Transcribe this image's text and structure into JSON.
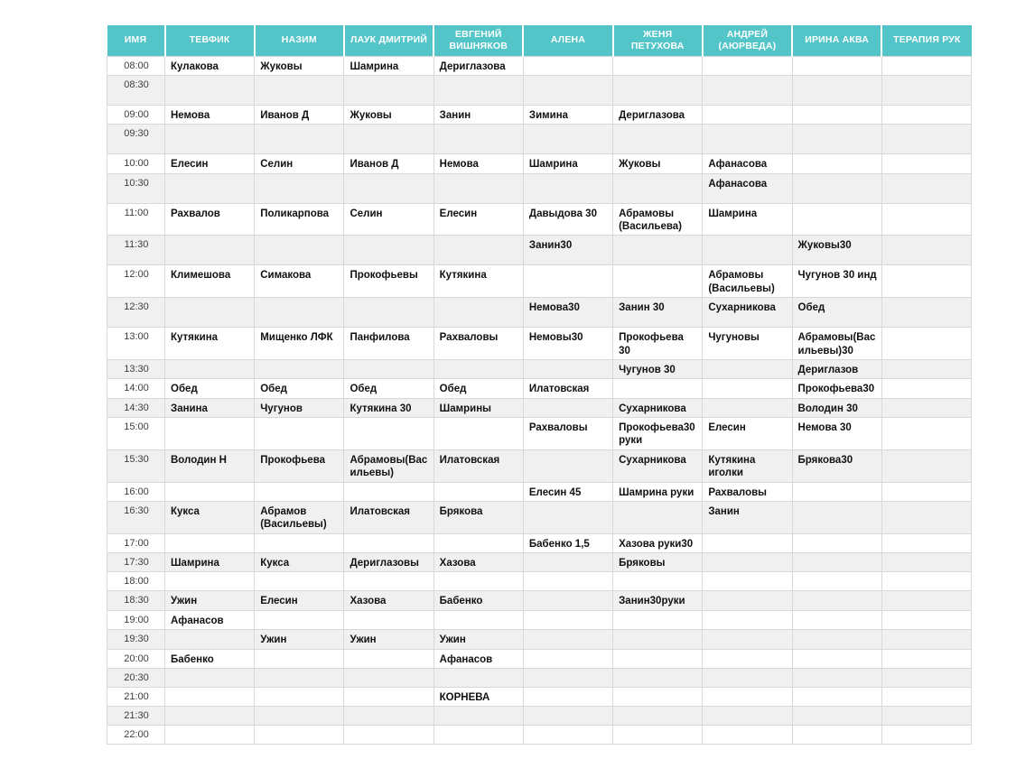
{
  "colors": {
    "header_bg": "#53c5c9",
    "header_text": "#ffffff",
    "row_alt": "#f0f0f1",
    "grid_border": "#d8d8d8",
    "cell_text": "#111111",
    "time_text": "#3d3d3d"
  },
  "table": {
    "columns": [
      "ИМЯ",
      "ТЕВФИК",
      "НАЗИМ",
      "ЛАУК ДМИТРИЙ",
      "ЕВГЕНИЙ ВИШНЯКОВ",
      "АЛЕНА",
      "ЖЕНЯ ПЕТУХОВА",
      "АНДРЕЙ (АЮРВЕДА)",
      "ИРИНА АКВА",
      "ТЕРАПИЯ РУК"
    ],
    "rows": [
      {
        "time": "08:00",
        "cells": [
          "Кулакова",
          "Жуковы",
          "Шамрина",
          "Дериглазова",
          "",
          "",
          "",
          "",
          ""
        ]
      },
      {
        "time": "08:30",
        "cells": [
          "",
          "",
          "",
          "",
          "",
          "",
          "",
          "",
          ""
        ]
      },
      {
        "time": "09:00",
        "cells": [
          "Немова",
          "Иванов Д",
          "Жуковы",
          "Занин",
          "Зимина",
          "Дериглазова",
          "",
          "",
          ""
        ]
      },
      {
        "time": "09:30",
        "cells": [
          "",
          "",
          "",
          "",
          "",
          "",
          "",
          "",
          ""
        ]
      },
      {
        "time": "10:00",
        "cells": [
          "Елесин",
          "Селин",
          "Иванов Д",
          "Немова",
          "Шамрина",
          "Жуковы",
          "Афанасова",
          "",
          ""
        ]
      },
      {
        "time": "10:30",
        "cells": [
          "",
          "",
          "",
          "",
          "",
          "",
          "Афанасова",
          "",
          ""
        ]
      },
      {
        "time": "11:00",
        "cells": [
          "Рахвалов",
          "Поликарпова",
          "Селин",
          "Елесин",
          "Давыдова 30",
          "Абрамовы (Васильева)",
          "Шамрина",
          "",
          ""
        ]
      },
      {
        "time": "11:30",
        "cells": [
          "",
          "",
          "",
          "",
          "Занин30",
          "",
          "",
          "Жуковы30",
          ""
        ]
      },
      {
        "time": "12:00",
        "cells": [
          "Климешова",
          "Симакова",
          "Прокофьевы",
          "Кутякина",
          "",
          "",
          "Абрамовы (Васильевы)",
          "Чугунов 30 инд",
          ""
        ]
      },
      {
        "time": "12:30",
        "cells": [
          "",
          "",
          "",
          "",
          "Немова30",
          "Занин 30",
          "Сухарникова",
          "Обед",
          ""
        ]
      },
      {
        "time": "13:00",
        "cells": [
          "Кутякина",
          "Мищенко ЛФК",
          "Панфилова",
          "Рахваловы",
          "Немовы30",
          "Прокофьева 30",
          "Чугуновы",
          "Абрамовы(Васильевы)30",
          ""
        ]
      },
      {
        "time": "13:30",
        "cells": [
          "",
          "",
          "",
          "",
          "",
          "Чугунов 30",
          "",
          "Дериглазов",
          ""
        ]
      },
      {
        "time": "14:00",
        "cells": [
          "Обед",
          "Обед",
          "Обед",
          "Обед",
          "Илатовская",
          "",
          "",
          "Прокофьева30",
          ""
        ]
      },
      {
        "time": "14:30",
        "cells": [
          "Занина",
          "Чугунов",
          "Кутякина 30",
          "Шамрины",
          "",
          "Сухарникова",
          "",
          "Володин 30",
          ""
        ]
      },
      {
        "time": "15:00",
        "cells": [
          "",
          "",
          "",
          "",
          "Рахваловы",
          "Прокофьева30руки",
          "Елесин",
          "Немова 30",
          ""
        ]
      },
      {
        "time": "15:30",
        "cells": [
          "Володин Н",
          "Прокофьева",
          "Абрамовы(Васильевы)",
          "Илатовская",
          "",
          "Сухарникова",
          "Кутякина иголки",
          "Брякова30",
          ""
        ]
      },
      {
        "time": "16:00",
        "cells": [
          "",
          "",
          "",
          "",
          "Елесин 45",
          "Шамрина руки",
          "Рахваловы",
          "",
          ""
        ]
      },
      {
        "time": "16:30",
        "cells": [
          "Кукса",
          "Абрамов (Васильевы)",
          "Илатовская",
          "Брякова",
          "",
          "",
          "Занин",
          "",
          ""
        ]
      },
      {
        "time": "17:00",
        "cells": [
          "",
          "",
          "",
          "",
          "Бабенко 1,5",
          "Хазова руки30",
          "",
          "",
          ""
        ]
      },
      {
        "time": "17:30",
        "cells": [
          "Шамрина",
          "Кукса",
          "Дериглазовы",
          "Хазова",
          "",
          "Бряковы",
          "",
          "",
          ""
        ]
      },
      {
        "time": "18:00",
        "cells": [
          "",
          "",
          "",
          "",
          "",
          "",
          "",
          "",
          ""
        ]
      },
      {
        "time": "18:30",
        "cells": [
          "Ужин",
          "Елесин",
          "Хазова",
          "Бабенко",
          "",
          "Занин30руки",
          "",
          "",
          ""
        ]
      },
      {
        "time": "19:00",
        "cells": [
          "Афанасов",
          "",
          "",
          "",
          "",
          "",
          "",
          "",
          ""
        ]
      },
      {
        "time": "19:30",
        "cells": [
          "",
          "Ужин",
          "Ужин",
          "Ужин",
          "",
          "",
          "",
          "",
          ""
        ]
      },
      {
        "time": "20:00",
        "cells": [
          "Бабенко",
          "",
          "",
          "Афанасов",
          "",
          "",
          "",
          "",
          ""
        ]
      },
      {
        "time": "20:30",
        "cells": [
          "",
          "",
          "",
          "",
          "",
          "",
          "",
          "",
          ""
        ]
      },
      {
        "time": "21:00",
        "cells": [
          "",
          "",
          "",
          "КОРНЕВА",
          "",
          "",
          "",
          "",
          ""
        ]
      },
      {
        "time": "21:30",
        "cells": [
          "",
          "",
          "",
          "",
          "",
          "",
          "",
          "",
          ""
        ]
      },
      {
        "time": "22:00",
        "cells": [
          "",
          "",
          "",
          "",
          "",
          "",
          "",
          "",
          ""
        ]
      }
    ]
  }
}
